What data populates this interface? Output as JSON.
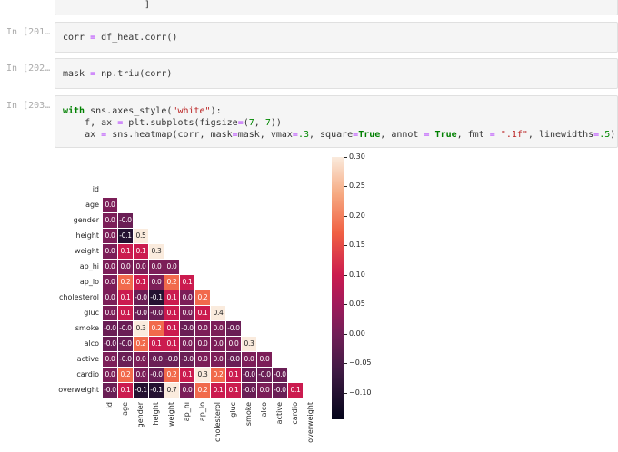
{
  "notebook": {
    "cells": [
      {
        "prompt": "",
        "code_line": "]"
      },
      {
        "prompt": "In [201…",
        "code": "corr = df_heat.corr()"
      },
      {
        "prompt": "In [202…",
        "code": "mask = np.triu(corr)"
      },
      {
        "prompt": "In [203…",
        "code_lines": [
          "with sns.axes_style(\"white\"):",
          "    f, ax = plt.subplots(figsize=(7, 7))",
          "    ax = sns.heatmap(corr, mask=mask, vmax=.3, square=True, annot = True, fmt = \".1f\", linewidths=.5)"
        ]
      }
    ]
  },
  "chart_data": {
    "type": "heatmap",
    "title": "",
    "xlabel": "",
    "ylabel": "",
    "variables": [
      "id",
      "age",
      "gender",
      "height",
      "weight",
      "ap_hi",
      "ap_lo",
      "cholesterol",
      "gluc",
      "smoke",
      "alco",
      "active",
      "cardio",
      "overweight"
    ],
    "x_tick_labels": [
      "id",
      "age",
      "gender",
      "height",
      "weight",
      "ap_hi",
      "ap_lo",
      "cholesterol",
      "gluc",
      "smoke",
      "alco",
      "active",
      "cardio",
      "overweight"
    ],
    "y_tick_labels": [
      "id",
      "age",
      "gender",
      "height",
      "weight",
      "ap_hi",
      "ap_lo",
      "cholesterol",
      "gluc",
      "smoke",
      "alco",
      "active",
      "cardio",
      "overweight"
    ],
    "mask": "upper triangle incl. diagonal",
    "lower_triangle_values": [
      [],
      [
        "0.0"
      ],
      [
        "0.0",
        "-0.0"
      ],
      [
        "0.0",
        "-0.1",
        "0.5"
      ],
      [
        "0.0",
        "0.1",
        "0.1",
        "0.3"
      ],
      [
        "0.0",
        "0.0",
        "0.0",
        "0.0",
        "0.0"
      ],
      [
        "0.0",
        "0.2",
        "0.1",
        "0.0",
        "0.2",
        "0.1"
      ],
      [
        "0.0",
        "0.1",
        "-0.0",
        "-0.1",
        "0.1",
        "0.0",
        "0.2"
      ],
      [
        "0.0",
        "0.1",
        "-0.0",
        "-0.0",
        "0.1",
        "0.0",
        "0.1",
        "0.4"
      ],
      [
        "-0.0",
        "-0.0",
        "0.3",
        "0.2",
        "0.1",
        "-0.0",
        "0.0",
        "0.0",
        "-0.0"
      ],
      [
        "-0.0",
        "-0.0",
        "0.2",
        "0.1",
        "0.1",
        "0.0",
        "0.0",
        "0.0",
        "0.0",
        "0.3"
      ],
      [
        "0.0",
        "-0.0",
        "0.0",
        "-0.0",
        "-0.0",
        "-0.0",
        "0.0",
        "0.0",
        "-0.0",
        "0.0",
        "0.0"
      ],
      [
        "0.0",
        "0.2",
        "0.0",
        "-0.0",
        "0.2",
        "0.1",
        "0.3",
        "0.2",
        "0.1",
        "-0.0",
        "-0.0",
        "-0.0"
      ],
      [
        "-0.0",
        "0.1",
        "-0.1",
        "-0.1",
        "0.7",
        "0.0",
        "0.2",
        "0.1",
        "0.1",
        "-0.0",
        "0.0",
        "-0.0",
        "0.1"
      ]
    ],
    "colorbar": {
      "ticks": [
        "0.30",
        "0.25",
        "0.20",
        "0.15",
        "0.10",
        "0.05",
        "0.00",
        "−0.05",
        "−0.10"
      ],
      "vmax": 0.3,
      "vmin": -0.145,
      "colormap": "rocket"
    }
  }
}
